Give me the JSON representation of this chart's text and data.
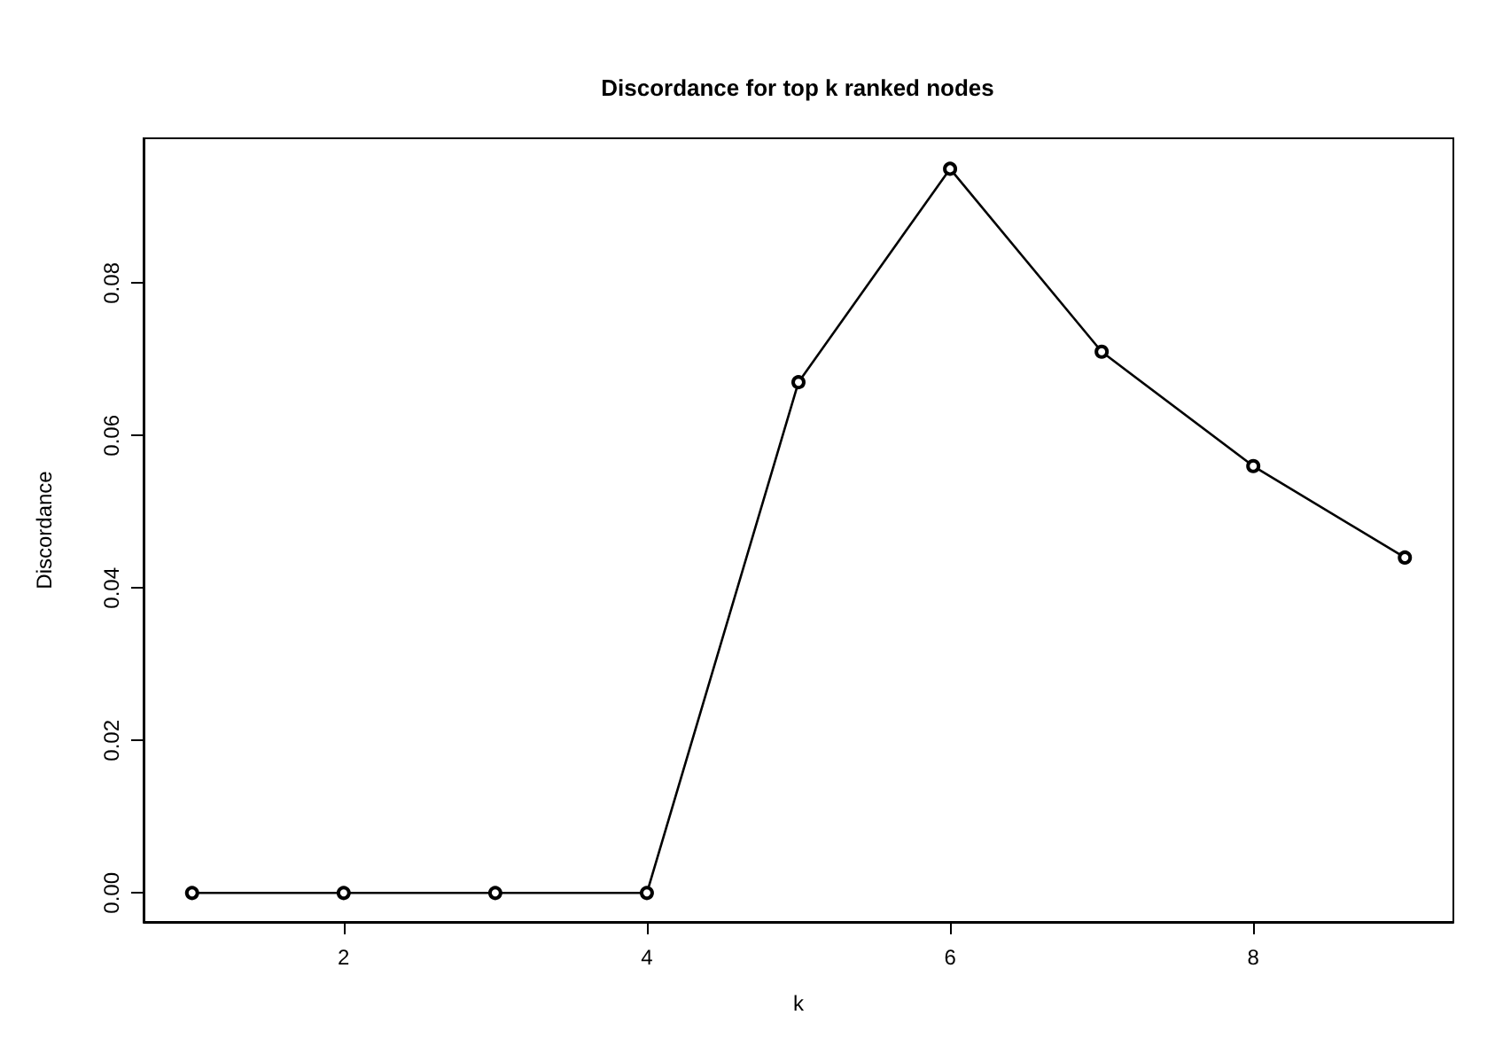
{
  "chart_data": {
    "type": "line",
    "title": "Discordance for top k ranked nodes",
    "xlabel": "k",
    "ylabel": "Discordance",
    "x": [
      1,
      2,
      3,
      4,
      5,
      6,
      7,
      8,
      9
    ],
    "series": [
      {
        "color": "#000000",
        "values": [
          0,
          0,
          0,
          0,
          0.067,
          0.095,
          0.071,
          0.056,
          0.044
        ]
      }
    ],
    "xlim": [
      0.68,
      9.32
    ],
    "xticks": [
      2,
      4,
      6,
      8
    ],
    "ylim": [
      -0.0038,
      0.099
    ],
    "yticks": [
      {
        "value": 0,
        "label": "0.00"
      },
      {
        "value": 0.02,
        "label": "0.02"
      },
      {
        "value": 0.04,
        "label": "0.04"
      },
      {
        "value": 0.06,
        "label": "0.06"
      },
      {
        "value": 0.08,
        "label": "0.08"
      }
    ],
    "marker": "circle",
    "line_style": "solid",
    "grid": false
  }
}
